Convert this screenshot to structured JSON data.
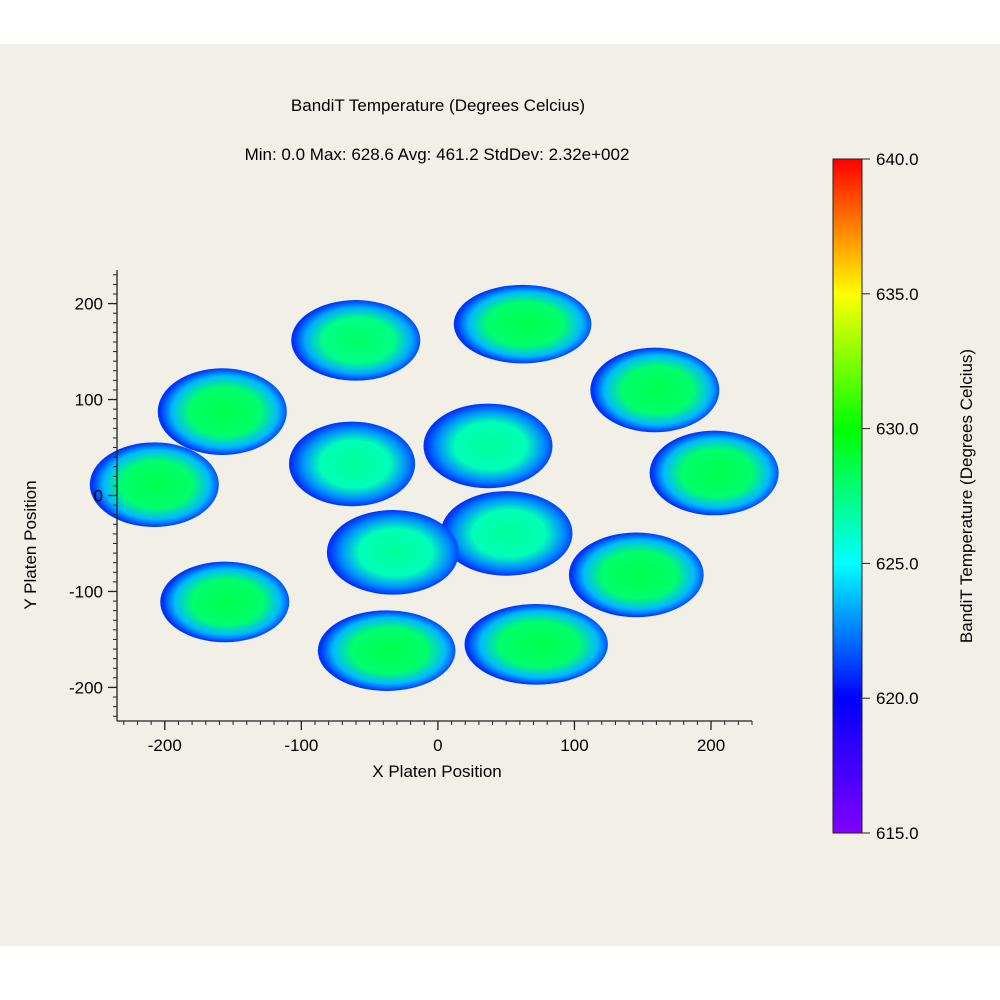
{
  "chart_data": {
    "type": "heatmap",
    "title": "BandiT Temperature (Degrees Celcius)",
    "subtitle": "Min: 0.0  Max: 628.6  Avg: 461.2  StdDev: 2.32e+002",
    "xlabel": "X Platen Position",
    "ylabel": "Y Platen Position",
    "xlim": [
      -235,
      230
    ],
    "ylim": [
      -235,
      235
    ],
    "x_ticks": [
      -200,
      -100,
      0,
      100,
      200
    ],
    "y_ticks": [
      -200,
      -100,
      0,
      100,
      200
    ],
    "x_tick_labels": [
      "-200",
      "-100",
      "0",
      "100",
      "200"
    ],
    "y_tick_labels": [
      "-200",
      "-100",
      "0",
      "100",
      "200"
    ],
    "colorbar": {
      "label": "BandiT Temperature (Degrees Celcius)",
      "min": 615.0,
      "max": 640.0,
      "ticks": [
        640.0,
        635.0,
        630.0,
        625.0,
        620.0,
        615.0
      ],
      "tick_labels": [
        "640.0",
        "635.0",
        "630.0",
        "625.0",
        "620.0",
        "615.0"
      ],
      "colors": [
        "#8000ff",
        "#0000ff",
        "#00ffff",
        "#00ff00",
        "#ffff00",
        "#ff0000"
      ]
    },
    "wafers": [
      {
        "x": -180,
        "y": 93,
        "rx": 45,
        "ry": 43,
        "center_temp": 628.5,
        "edge_temp": 621
      },
      {
        "x": -72,
        "y": 172,
        "rx": 45,
        "ry": 40,
        "center_temp": 628.0,
        "edge_temp": 621
      },
      {
        "x": 63,
        "y": 190,
        "rx": 48,
        "ry": 39,
        "center_temp": 628.5,
        "edge_temp": 621
      },
      {
        "x": 170,
        "y": 117,
        "rx": 45,
        "ry": 42,
        "center_temp": 628.5,
        "edge_temp": 621
      },
      {
        "x": 218,
        "y": 25,
        "rx": 45,
        "ry": 42,
        "center_temp": 628.5,
        "edge_temp": 621
      },
      {
        "x": 155,
        "y": -88,
        "rx": 47,
        "ry": 42,
        "center_temp": 628.5,
        "edge_temp": 621
      },
      {
        "x": 74,
        "y": -165,
        "rx": 50,
        "ry": 40,
        "center_temp": 628.5,
        "edge_temp": 621
      },
      {
        "x": -47,
        "y": -172,
        "rx": 48,
        "ry": 40,
        "center_temp": 628.5,
        "edge_temp": 621
      },
      {
        "x": -178,
        "y": -118,
        "rx": 45,
        "ry": 40,
        "center_temp": 628.5,
        "edge_temp": 621
      },
      {
        "x": -235,
        "y": 12,
        "rx": 45,
        "ry": 42,
        "center_temp": 628.5,
        "edge_temp": 621
      },
      {
        "x": -75,
        "y": 35,
        "rx": 44,
        "ry": 42,
        "center_temp": 627.0,
        "edge_temp": 621
      },
      {
        "x": 35,
        "y": 55,
        "rx": 45,
        "ry": 42,
        "center_temp": 627.0,
        "edge_temp": 621
      },
      {
        "x": 50,
        "y": -42,
        "rx": 46,
        "ry": 42,
        "center_temp": 627.0,
        "edge_temp": 621
      },
      {
        "x": -42,
        "y": -63,
        "rx": 46,
        "ry": 42,
        "center_temp": 627.0,
        "edge_temp": 621
      }
    ],
    "grid": false,
    "legend": "none"
  }
}
